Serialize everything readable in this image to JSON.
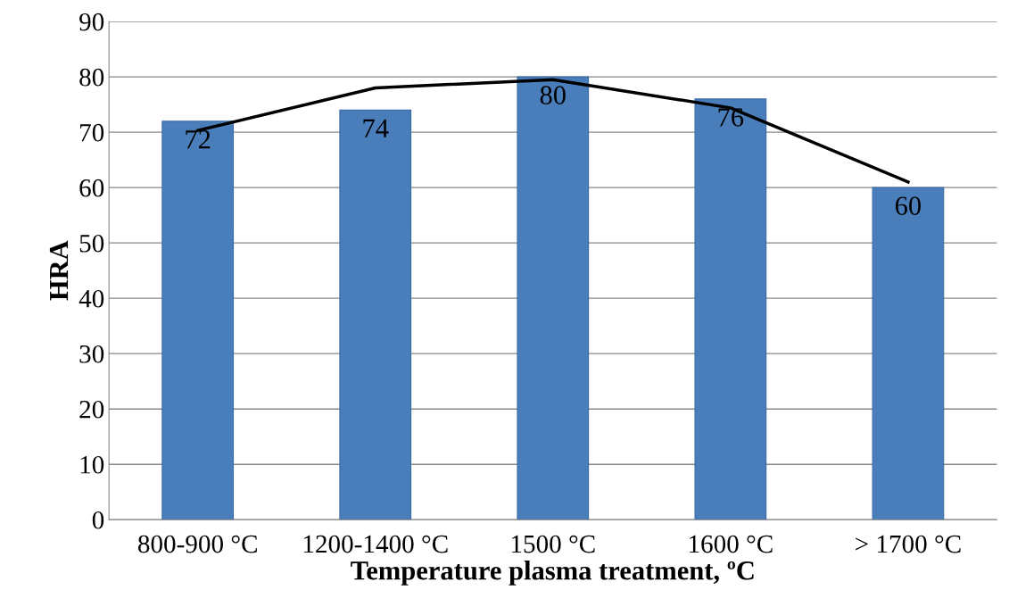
{
  "chart_data": {
    "type": "bar",
    "xlabel": "Temperature plasma treatment, ºC",
    "ylabel": "HRA",
    "categories": [
      "800-900 °C",
      "1200-1400 °C",
      "1500 °C",
      "1600 °C",
      "> 1700 °C"
    ],
    "series": [
      {
        "color": "#4a7ebb",
        "values": [
          72,
          74,
          80,
          76,
          60
        ],
        "value_labels": [
          "72",
          "74",
          "80",
          "76",
          "60"
        ]
      },
      {
        "type": "line",
        "color": "#000000",
        "x": [
          "800-900 °C",
          "1200-1400 °C",
          "1500 °C",
          "1600 °C",
          "> 1700 °C"
        ],
        "values": [
          70.3,
          78,
          79.5,
          74.4,
          61
        ]
      }
    ],
    "ylim": [
      0,
      90
    ],
    "yticks": [
      0,
      10,
      20,
      30,
      40,
      50,
      60,
      70,
      80,
      90
    ],
    "grid": "y",
    "legend": false,
    "marker": "none"
  }
}
